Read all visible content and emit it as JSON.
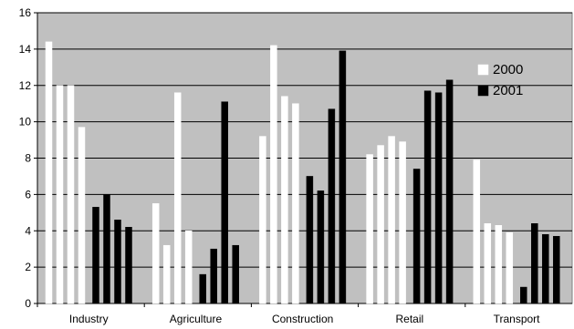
{
  "chart_data": {
    "type": "bar",
    "title": "",
    "xlabel": "",
    "ylabel": "",
    "ylim": [
      0,
      16
    ],
    "yticks": [
      0,
      2,
      4,
      6,
      8,
      10,
      12,
      14,
      16
    ],
    "grid": true,
    "legend_position": "right",
    "categories": [
      "Industry",
      "Agriculture",
      "Construction",
      "Retail",
      "Transport"
    ],
    "series": [
      {
        "name": "2000",
        "color": "#ffffff",
        "values": [
          [
            14.4,
            12.0,
            12.0,
            9.7
          ],
          [
            5.5,
            3.2,
            11.6,
            4.0
          ],
          [
            9.2,
            14.2,
            11.4,
            11.0
          ],
          [
            8.2,
            8.7,
            9.2,
            8.9
          ],
          [
            7.9,
            4.4,
            4.3,
            3.9
          ]
        ]
      },
      {
        "name": "2001",
        "color": "#000000",
        "values": [
          [
            5.3,
            6.0,
            4.6,
            4.2
          ],
          [
            1.6,
            3.0,
            11.1,
            3.2
          ],
          [
            7.0,
            6.2,
            10.7,
            13.9
          ],
          [
            7.4,
            11.7,
            11.6,
            12.3
          ],
          [
            0.9,
            4.4,
            3.8,
            3.7
          ]
        ]
      }
    ],
    "plot_background": "#c0c0c0"
  }
}
